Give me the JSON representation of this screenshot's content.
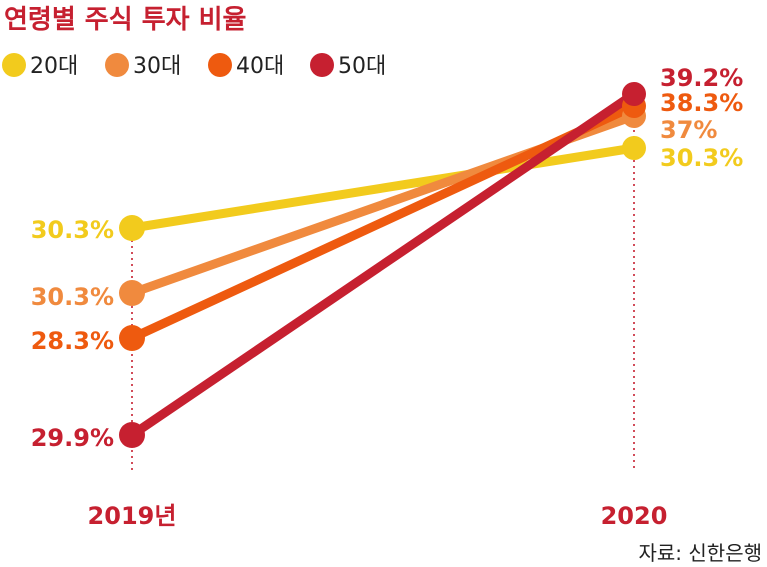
{
  "chart_data": {
    "type": "line",
    "title": "연령별 주식 투자 비율",
    "categories": [
      "2019년",
      "2020"
    ],
    "series": [
      {
        "name": "20대",
        "color": "#F2CB1D",
        "values": [
          30.3,
          30.3
        ],
        "labels": [
          "30.3%",
          "30.3%"
        ]
      },
      {
        "name": "30대",
        "color": "#F08A3E",
        "values": [
          30.3,
          37
        ],
        "labels": [
          "30.3%",
          "37%"
        ]
      },
      {
        "name": "40대",
        "color": "#EE5A0F",
        "values": [
          28.3,
          38.3
        ],
        "labels": [
          "28.3%",
          "38.3%"
        ]
      },
      {
        "name": "50대",
        "color": "#C62030",
        "values": [
          29.9,
          39.2
        ],
        "labels": [
          "29.9%",
          "39.2%"
        ]
      }
    ],
    "legend": "top-left",
    "grid": false,
    "source": "자료: 신한은행"
  },
  "colors": {
    "title": "#C62030",
    "axis_label": "#C62030",
    "guide": "#C62030"
  }
}
